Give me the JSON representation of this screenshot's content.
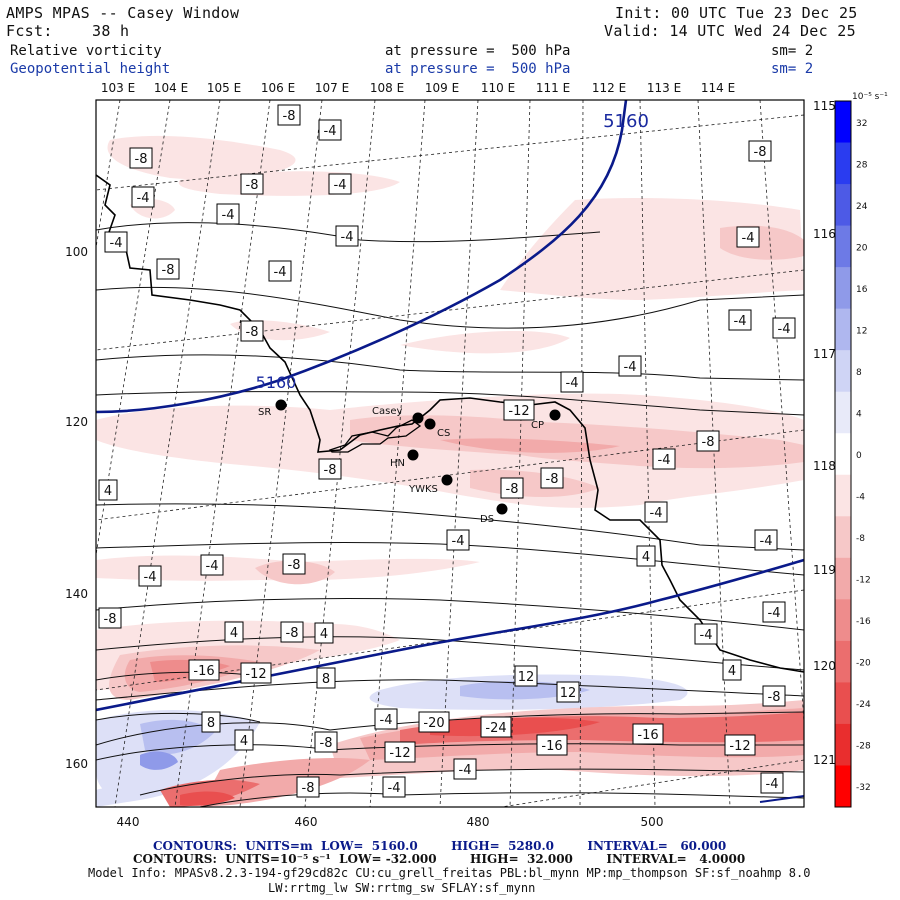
{
  "header": {
    "title": "AMPS MPAS -- Casey Window",
    "forecast_label": "Fcst:",
    "forecast_hours": "38 h",
    "init": "Init: 00 UTC Tue 23 Dec 25",
    "valid": "Valid: 14 UTC Wed 24 Dec 25",
    "field1_name": "Relative vorticity",
    "field1_level": "at pressure =  500 hPa",
    "field1_smooth": "sm= 2",
    "field2_name": "Geopotential height",
    "field2_level": "at pressure =  500 hPa",
    "field2_smooth": "sm= 2"
  },
  "map": {
    "lon_labels_top": [
      "103 E",
      "104 E",
      "105 E",
      "106 E",
      "107 E",
      "108 E",
      "109 E",
      "110 E",
      "111 E",
      "112 E",
      "113 E",
      "114 E"
    ],
    "lon_labels_right": [
      "115 E",
      "116 E",
      "117 E",
      "118 E",
      "119 E",
      "120 E",
      "121 E"
    ],
    "grid_x_values": [
      "440",
      "460",
      "480",
      "500"
    ],
    "grid_y_values": [
      "100",
      "120",
      "140",
      "160"
    ],
    "height_contour_labels": [
      "5160",
      "5160"
    ],
    "vorticity_labels": [
      "-8",
      "-4",
      "-8",
      "-8",
      "-8",
      "-4",
      "-4",
      "-4",
      "-4",
      "-4",
      "-4",
      "-8",
      "-4",
      "-4",
      "-4",
      "-8",
      "-4",
      "-4",
      "-12",
      "-8",
      "-4",
      "-8",
      "-8",
      "-8",
      "-4",
      "4",
      "-4",
      "-4",
      "-8",
      "-4",
      "-4",
      "-8",
      "-8",
      "4",
      "4",
      "-4",
      "4",
      "-4",
      "-16",
      "-12",
      "4",
      "8",
      "12",
      "12",
      "8",
      "4",
      "-8",
      "-4",
      "-20",
      "-24",
      "-12",
      "-16",
      "-16",
      "-12",
      "-8",
      "-4",
      "-8",
      "-4",
      "-4"
    ],
    "stations": [
      {
        "name": "SR"
      },
      {
        "name": "Casey"
      },
      {
        "name": "CS"
      },
      {
        "name": "CP"
      },
      {
        "name": "HN"
      },
      {
        "name": "YWKS"
      },
      {
        "name": "DS"
      }
    ]
  },
  "colorbar": {
    "units": "10⁻⁵ s⁻¹",
    "levels": [
      "32",
      "28",
      "24",
      "20",
      "16",
      "12",
      "8",
      "4",
      "0",
      "-4",
      "-8",
      "-12",
      "-16",
      "-20",
      "-24",
      "-28",
      "-32"
    ],
    "colors": [
      "#0000ff",
      "#2a3cf0",
      "#4d5ae6",
      "#6d7ae6",
      "#8f9ae9",
      "#afb7ef",
      "#cfd4f5",
      "#e8eaf9",
      "#ffffff",
      "#fbe4e4",
      "#f6c8c8",
      "#f2aaaa",
      "#ee8c8c",
      "#eb6e6e",
      "#e94f4f",
      "#e92e2e",
      "#ff0000"
    ]
  },
  "footer": {
    "line1": "CONTOURS:  UNITS=m  LOW=  5160.0        HIGH=  5280.0        INTERVAL=   60.000",
    "line2": "CONTOURS:  UNITS=10⁻⁵ s⁻¹  LOW= -32.000        HIGH=  32.000        INTERVAL=   4.0000",
    "line3": "Model Info: MPASv8.2.3-194-gf29cd82c CU:cu_grell_freitas PBL:bl_mynn MP:mp_thompson SF:sf_noahmp 8.0",
    "line4": "LW:rrtmg_lw SW:rrtmg_sw SFLAY:sf_mynn"
  },
  "colors": {
    "text": "#111111",
    "blue_text": "#1a3aa8",
    "height_contour": "#0a1a8a",
    "coast": "#000000",
    "neg_light": "#fbe4e4",
    "neg_mid": "#f2aaaa",
    "neg_strong": "#e94f4f",
    "pos_light": "#dde0f7",
    "pos_mid": "#8f9ae9"
  }
}
